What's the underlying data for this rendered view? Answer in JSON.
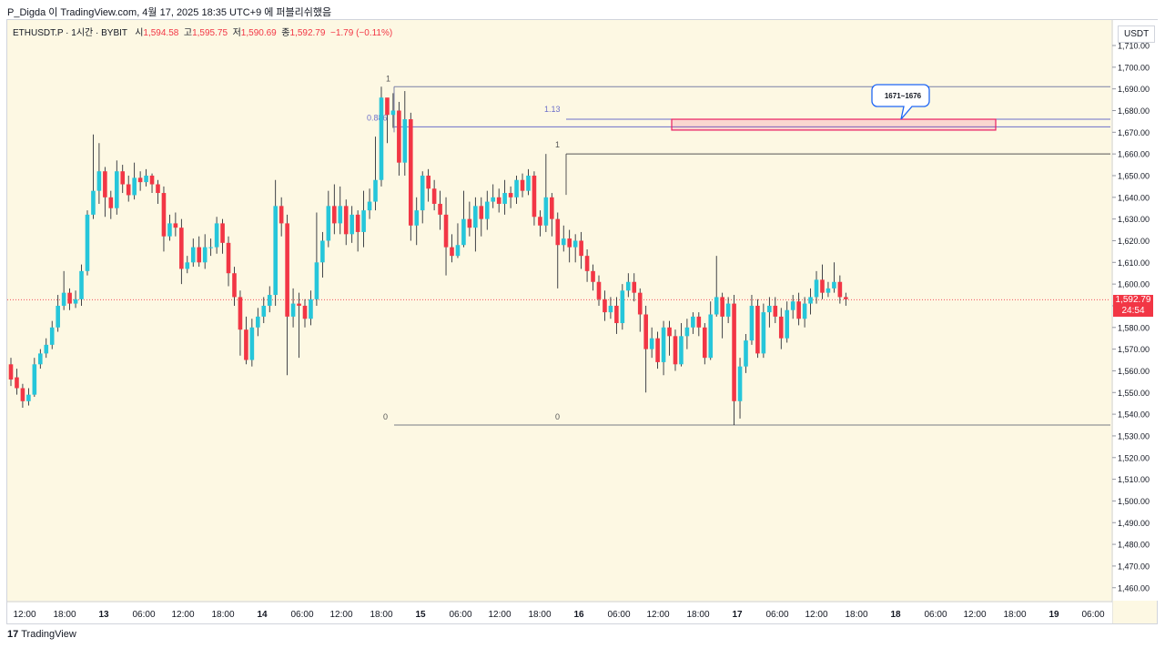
{
  "header": {
    "caption": "P_Digda 이 TradingView.com, 4월 17, 2025 18:35 UTC+9 에 퍼블리쉬했음"
  },
  "legend": {
    "symbol": "ETHUSDT.P · 1시간 · BYBIT",
    "open_label": "시",
    "open": "1,594.58",
    "high_label": "고",
    "high": "1,595.75",
    "low_label": "저",
    "low": "1,590.69",
    "close_label": "종",
    "close": "1,592.79",
    "change": "−1.79 (−0.11%)"
  },
  "price_axis": {
    "currency": "USDT",
    "current_price": "1,592.79",
    "countdown": "24:54",
    "labels": [
      "1,710.00",
      "1,700.00",
      "1,690.00",
      "1,680.00",
      "1,670.00",
      "1,660.00",
      "1,650.00",
      "1,640.00",
      "1,630.00",
      "1,620.00",
      "1,610.00",
      "1,600.00",
      "1,590.00",
      "1,580.00",
      "1,570.00",
      "1,560.00",
      "1,550.00",
      "1,540.00",
      "1,530.00",
      "1,520.00",
      "1,510.00",
      "1,500.00",
      "1,490.00",
      "1,480.00",
      "1,470.00",
      "1,460.00"
    ]
  },
  "time_axis": {
    "labels": [
      "12:00",
      "18:00",
      "13",
      "06:00",
      "12:00",
      "18:00",
      "14",
      "06:00",
      "12:00",
      "18:00",
      "15",
      "06:00",
      "12:00",
      "18:00",
      "16",
      "06:00",
      "12:00",
      "18:00",
      "17",
      "06:00",
      "12:00",
      "18:00",
      "18",
      "06:00",
      "12:00",
      "18:00",
      "19",
      "06:00"
    ]
  },
  "drawings": {
    "fib1": {
      "level_top": "1",
      "level_mid": "0.886",
      "level_bottom": "0"
    },
    "fib2": {
      "level_ext": "1.13",
      "level_top": "1",
      "level_bottom": "0"
    },
    "zone_callout": "1671~1676"
  },
  "colors": {
    "up": "#26c6da",
    "down": "#f23645",
    "background": "#fdf8e3",
    "zone": "#e91e63",
    "callout": "#1e66f5"
  },
  "footer": {
    "brand": "TradingView"
  },
  "chart_data": {
    "type": "candlestick",
    "timeframe": "1h",
    "symbol": "ETHUSDT.P",
    "ylim": [
      1455,
      1715
    ],
    "current_price": 1592.79,
    "levels": {
      "fib1_top": 1691,
      "fib1_0886": 1672.5,
      "fib_zero": 1535,
      "fib2_top": 1660,
      "fib2_113": 1676
    },
    "zone": [
      1671,
      1676
    ],
    "candles": [
      [
        1563,
        1556,
        1566,
        1553
      ],
      [
        1557,
        1552,
        1561,
        1549
      ],
      [
        1552,
        1546,
        1554,
        1543
      ],
      [
        1546,
        1549,
        1552,
        1544
      ],
      [
        1549,
        1563,
        1566,
        1548
      ],
      [
        1563,
        1568,
        1570,
        1561
      ],
      [
        1568,
        1572,
        1575,
        1566
      ],
      [
        1572,
        1580,
        1583,
        1570
      ],
      [
        1580,
        1590,
        1595,
        1578
      ],
      [
        1590,
        1596,
        1606,
        1588
      ],
      [
        1596,
        1591,
        1598,
        1588
      ],
      [
        1591,
        1593,
        1597,
        1589
      ],
      [
        1593,
        1606,
        1609,
        1590
      ],
      [
        1606,
        1632,
        1634,
        1604
      ],
      [
        1632,
        1643,
        1669,
        1630
      ],
      [
        1643,
        1652,
        1665,
        1637
      ],
      [
        1652,
        1640,
        1654,
        1631
      ],
      [
        1640,
        1635,
        1643,
        1630
      ],
      [
        1635,
        1652,
        1657,
        1632
      ],
      [
        1652,
        1646,
        1655,
        1642
      ],
      [
        1646,
        1641,
        1650,
        1638
      ],
      [
        1641,
        1649,
        1656,
        1639
      ],
      [
        1649,
        1647,
        1652,
        1643
      ],
      [
        1647,
        1650,
        1653,
        1645
      ],
      [
        1650,
        1646,
        1651,
        1642
      ],
      [
        1646,
        1642,
        1648,
        1637
      ],
      [
        1642,
        1622,
        1645,
        1615
      ],
      [
        1622,
        1628,
        1632,
        1620
      ],
      [
        1628,
        1626,
        1633,
        1622
      ],
      [
        1626,
        1607,
        1630,
        1600
      ],
      [
        1607,
        1610,
        1613,
        1605
      ],
      [
        1610,
        1617,
        1621,
        1608
      ],
      [
        1617,
        1610,
        1622,
        1608
      ],
      [
        1610,
        1617,
        1623,
        1607
      ],
      [
        1617,
        1617,
        1621,
        1613
      ],
      [
        1617,
        1628,
        1631,
        1614
      ],
      [
        1628,
        1619,
        1630,
        1614
      ],
      [
        1619,
        1605,
        1622,
        1599
      ],
      [
        1605,
        1594,
        1608,
        1590
      ],
      [
        1594,
        1579,
        1597,
        1567
      ],
      [
        1579,
        1565,
        1585,
        1563
      ],
      [
        1565,
        1580,
        1584,
        1562
      ],
      [
        1580,
        1585,
        1589,
        1576
      ],
      [
        1585,
        1590,
        1594,
        1582
      ],
      [
        1590,
        1595,
        1599,
        1587
      ],
      [
        1595,
        1636,
        1648,
        1590
      ],
      [
        1636,
        1628,
        1640,
        1622
      ],
      [
        1628,
        1585,
        1632,
        1558
      ],
      [
        1585,
        1591,
        1598,
        1580
      ],
      [
        1591,
        1590,
        1596,
        1566
      ],
      [
        1590,
        1584,
        1593,
        1580
      ],
      [
        1584,
        1593,
        1597,
        1581
      ],
      [
        1593,
        1610,
        1633,
        1590
      ],
      [
        1610,
        1620,
        1624,
        1603
      ],
      [
        1620,
        1636,
        1643,
        1617
      ],
      [
        1636,
        1628,
        1646,
        1623
      ],
      [
        1628,
        1636,
        1645,
        1623
      ],
      [
        1636,
        1623,
        1639,
        1618
      ],
      [
        1623,
        1632,
        1636,
        1619
      ],
      [
        1632,
        1624,
        1634,
        1615
      ],
      [
        1624,
        1634,
        1643,
        1617
      ],
      [
        1634,
        1638,
        1644,
        1630
      ],
      [
        1638,
        1648,
        1668,
        1634
      ],
      [
        1648,
        1686,
        1691,
        1645
      ],
      [
        1686,
        1678,
        1683,
        1665
      ],
      [
        1678,
        1680,
        1688,
        1672
      ],
      [
        1680,
        1656,
        1684,
        1650
      ],
      [
        1656,
        1676,
        1689,
        1650
      ],
      [
        1676,
        1627,
        1679,
        1620
      ],
      [
        1627,
        1634,
        1640,
        1618
      ],
      [
        1634,
        1650,
        1652,
        1628
      ],
      [
        1650,
        1644,
        1653,
        1638
      ],
      [
        1644,
        1637,
        1648,
        1634
      ],
      [
        1637,
        1632,
        1643,
        1625
      ],
      [
        1632,
        1617,
        1640,
        1604
      ],
      [
        1617,
        1613,
        1623,
        1610
      ],
      [
        1613,
        1618,
        1628,
        1612
      ],
      [
        1618,
        1630,
        1643,
        1617
      ],
      [
        1630,
        1626,
        1638,
        1622
      ],
      [
        1626,
        1636,
        1640,
        1615
      ],
      [
        1636,
        1630,
        1640,
        1622
      ],
      [
        1630,
        1638,
        1643,
        1625
      ],
      [
        1638,
        1640,
        1646,
        1635
      ],
      [
        1640,
        1637,
        1644,
        1633
      ],
      [
        1637,
        1642,
        1648,
        1632
      ],
      [
        1642,
        1640,
        1645,
        1635
      ],
      [
        1640,
        1648,
        1650,
        1637
      ],
      [
        1648,
        1643,
        1651,
        1640
      ],
      [
        1643,
        1650,
        1653,
        1641
      ],
      [
        1650,
        1631,
        1652,
        1627
      ],
      [
        1631,
        1627,
        1634,
        1622
      ],
      [
        1627,
        1640,
        1660,
        1624
      ],
      [
        1640,
        1630,
        1642,
        1622
      ],
      [
        1630,
        1618,
        1633,
        1598
      ],
      [
        1618,
        1621,
        1627,
        1615
      ],
      [
        1621,
        1617,
        1625,
        1610
      ],
      [
        1617,
        1620,
        1623,
        1610
      ],
      [
        1620,
        1613,
        1624,
        1607
      ],
      [
        1613,
        1606,
        1616,
        1601
      ],
      [
        1606,
        1601,
        1609,
        1597
      ],
      [
        1601,
        1593,
        1604,
        1590
      ],
      [
        1593,
        1587,
        1597,
        1583
      ],
      [
        1587,
        1590,
        1594,
        1584
      ],
      [
        1590,
        1582,
        1594,
        1577
      ],
      [
        1582,
        1597,
        1600,
        1579
      ],
      [
        1597,
        1601,
        1605,
        1594
      ],
      [
        1601,
        1596,
        1605,
        1592
      ],
      [
        1596,
        1586,
        1598,
        1578
      ],
      [
        1586,
        1570,
        1590,
        1550
      ],
      [
        1570,
        1575,
        1580,
        1566
      ],
      [
        1575,
        1564,
        1578,
        1561
      ],
      [
        1564,
        1580,
        1583,
        1558
      ],
      [
        1580,
        1576,
        1583,
        1567
      ],
      [
        1576,
        1563,
        1579,
        1560
      ],
      [
        1563,
        1576,
        1582,
        1562
      ],
      [
        1576,
        1580,
        1584,
        1570
      ],
      [
        1580,
        1585,
        1587,
        1577
      ],
      [
        1585,
        1580,
        1587,
        1576
      ],
      [
        1580,
        1566,
        1582,
        1563
      ],
      [
        1566,
        1586,
        1592,
        1565
      ],
      [
        1586,
        1594,
        1613,
        1585
      ],
      [
        1594,
        1585,
        1596,
        1575
      ],
      [
        1585,
        1591,
        1594,
        1582
      ],
      [
        1591,
        1546,
        1595,
        1535
      ],
      [
        1546,
        1562,
        1566,
        1538
      ],
      [
        1562,
        1574,
        1577,
        1559
      ],
      [
        1574,
        1590,
        1595,
        1572
      ],
      [
        1590,
        1568,
        1593,
        1566
      ],
      [
        1568,
        1587,
        1591,
        1566
      ],
      [
        1587,
        1590,
        1594,
        1580
      ],
      [
        1590,
        1585,
        1594,
        1582
      ],
      [
        1585,
        1575,
        1589,
        1570
      ],
      [
        1575,
        1588,
        1592,
        1573
      ],
      [
        1588,
        1592,
        1595,
        1584
      ],
      [
        1592,
        1584,
        1596,
        1581
      ],
      [
        1584,
        1591,
        1594,
        1580
      ],
      [
        1591,
        1594,
        1598,
        1586
      ],
      [
        1594,
        1602,
        1606,
        1591
      ],
      [
        1602,
        1596,
        1609,
        1593
      ],
      [
        1596,
        1598,
        1601,
        1594
      ],
      [
        1598,
        1601,
        1610,
        1596
      ],
      [
        1601,
        1594,
        1604,
        1591
      ],
      [
        1594,
        1593,
        1596,
        1590
      ]
    ]
  }
}
